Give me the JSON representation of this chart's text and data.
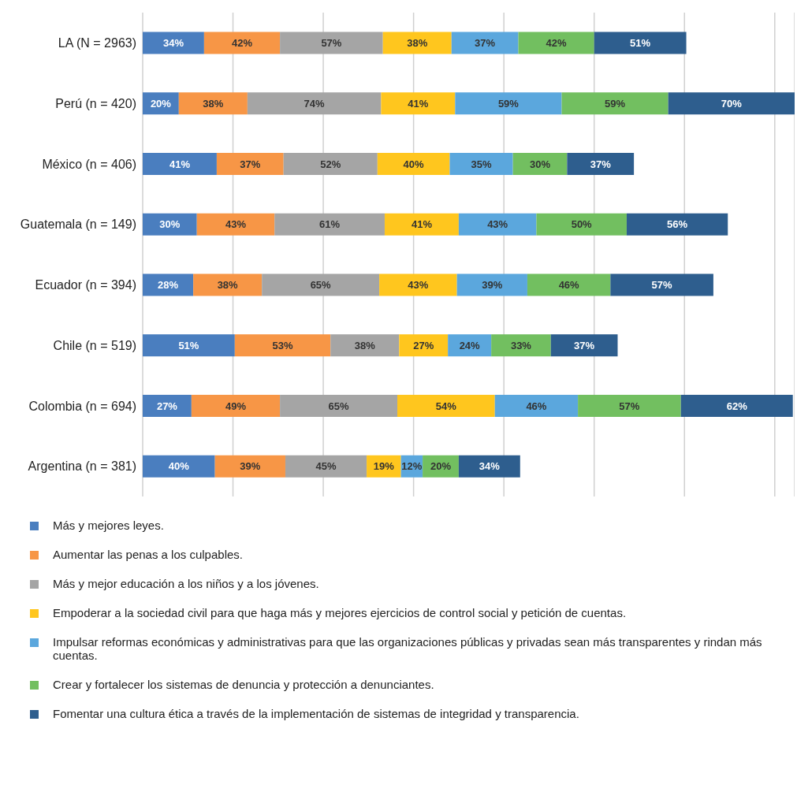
{
  "chart_data": {
    "type": "bar",
    "orientation": "horizontal",
    "stacked": true,
    "categories": [
      "LA (N = 2963)",
      "Perú (n = 420)",
      "México (n = 406)",
      "Guatemala (n = 149)",
      "Ecuador (n = 394)",
      "Chile (n = 519)",
      "Colombia (n = 694)",
      "Argentina (n = 381)"
    ],
    "series": [
      {
        "name": "Más y mejores leyes.",
        "color": "#4a7ebf",
        "values": [
          34,
          20,
          41,
          30,
          28,
          51,
          27,
          40
        ],
        "value_labels": [
          "34%",
          "20%",
          "41%",
          "30%",
          "28%",
          "51%",
          "27%",
          "40%"
        ]
      },
      {
        "name": "Aumentar las penas a los culpables.",
        "color": "#f79646",
        "values": [
          42,
          38,
          37,
          43,
          38,
          53,
          49,
          39
        ],
        "value_labels": [
          "42%",
          "38%",
          "37%",
          "43%",
          "38%",
          "53%",
          "49%",
          "39%"
        ]
      },
      {
        "name": "Más y mejor educación a los niños y a los jóvenes.",
        "color": "#a5a5a5",
        "values": [
          57,
          74,
          52,
          61,
          65,
          38,
          65,
          45
        ],
        "value_labels": [
          "57%",
          "74%",
          "52%",
          "61%",
          "65%",
          "38%",
          "65%",
          "45%"
        ]
      },
      {
        "name": "Empoderar a la sociedad civil para que haga más y mejores ejercicios de control social y petición de cuentas.",
        "color": "#ffc61e",
        "values": [
          38,
          41,
          40,
          41,
          43,
          27,
          54,
          19
        ],
        "value_labels": [
          "38%",
          "41%",
          "40%",
          "41%",
          "43%",
          "27%",
          "54%",
          "19%"
        ]
      },
      {
        "name": "Impulsar reformas económicas y administrativas para que las organizaciones públicas y privadas sean más transparentes y rindan más cuentas.",
        "color": "#5ba7dd",
        "values": [
          37,
          59,
          35,
          43,
          39,
          24,
          46,
          12
        ],
        "value_labels": [
          "37%",
          "59%",
          "35%",
          "43%",
          "39%",
          "24%",
          "46%",
          "12%"
        ]
      },
      {
        "name": "Crear y fortalecer los sistemas de denuncia y protección a denunciantes.",
        "color": "#72bf60",
        "values": [
          42,
          59,
          30,
          50,
          46,
          33,
          57,
          20
        ],
        "value_labels": [
          "42%",
          "59%",
          "30%",
          "50%",
          "46%",
          "33%",
          "57%",
          "20%"
        ]
      },
      {
        "name": "Fomentar una cultura ética a través de la implementación de sistemas de integridad y transparencia.",
        "color": "#2e5e8e",
        "values": [
          51,
          70,
          37,
          56,
          57,
          37,
          62,
          34
        ],
        "value_labels": [
          "51%",
          "70%",
          "37%",
          "56%",
          "57%",
          "37%",
          "62%",
          "34%"
        ]
      }
    ],
    "xlim": [
      0,
      361
    ],
    "xticks": [
      {
        "value": 0,
        "label": null
      },
      {
        "value": 50,
        "label": null
      },
      {
        "value": 100,
        "label": null
      },
      {
        "value": 150,
        "label": null
      },
      {
        "value": 200,
        "label": null
      },
      {
        "value": 250,
        "label": null
      },
      {
        "value": 300,
        "label": null
      },
      {
        "value": 350,
        "label": null
      }
    ],
    "tick_labels": "y",
    "grid": "x",
    "legend": "bottom"
  }
}
